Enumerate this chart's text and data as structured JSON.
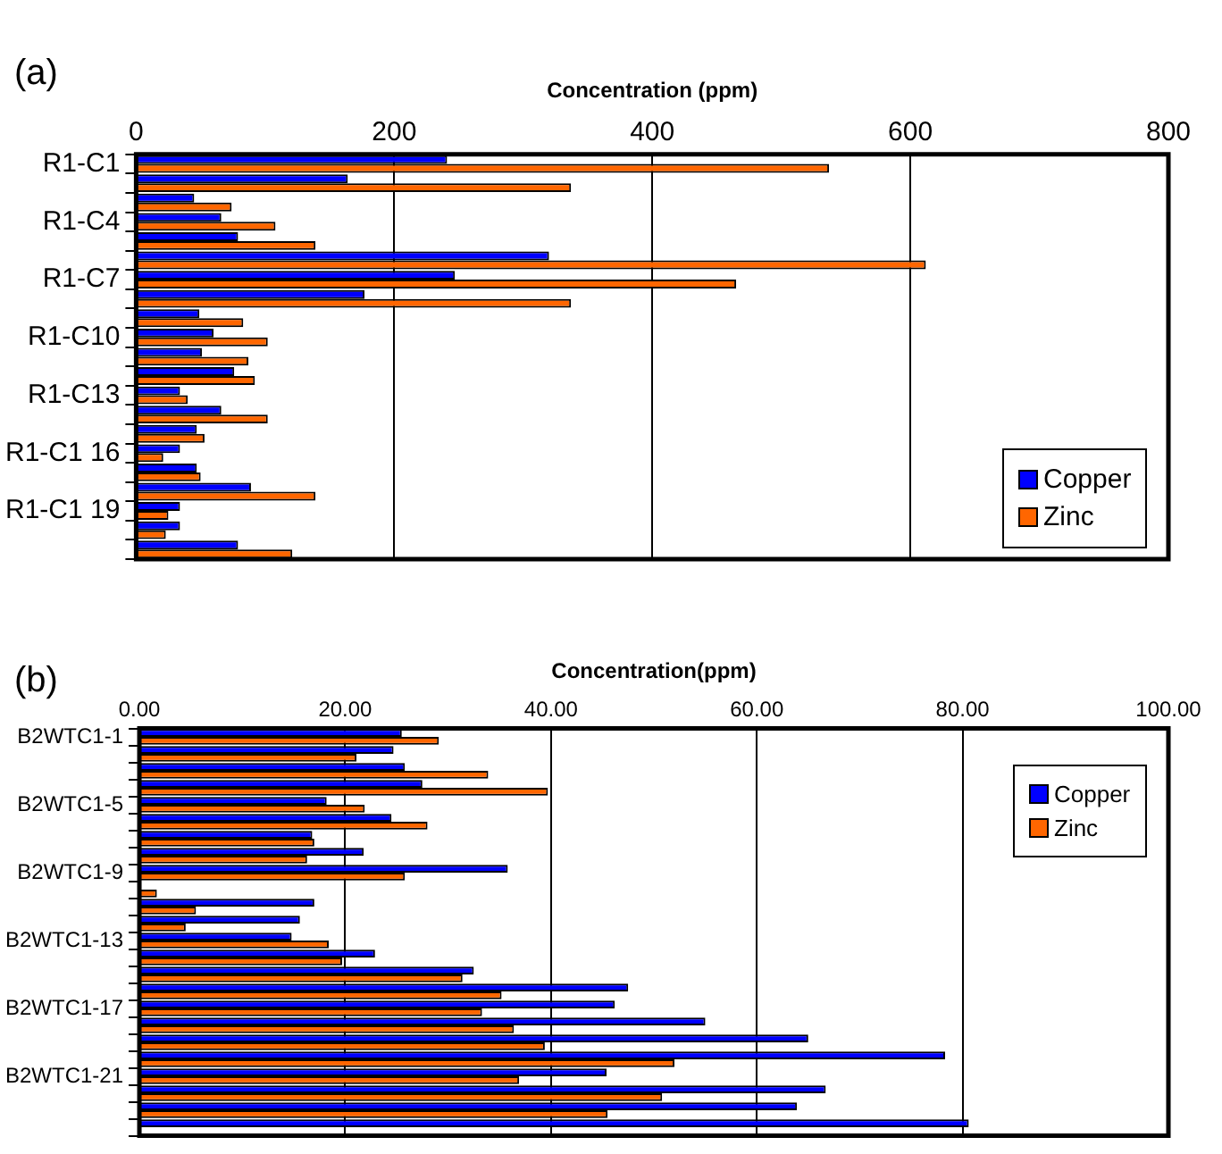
{
  "chart_data": [
    {
      "type": "bar",
      "orientation": "horizontal",
      "annotations": [
        "(a)"
      ],
      "xlabel": "Concentration (ppm)",
      "categories": [
        "R1-C1",
        null,
        null,
        "R1-C4",
        null,
        null,
        "R1-C7",
        null,
        null,
        "R1-C10",
        null,
        null,
        "R1-C13",
        null,
        null,
        "R1-C1 16",
        null,
        null,
        "R1-C1 19",
        null,
        null
      ],
      "series": [
        {
          "name": "Copper",
          "color": "#0000ff",
          "values": [
            241,
            164,
            45,
            66,
            79,
            320,
            247,
            177,
            49,
            60,
            51,
            76,
            34,
            66,
            47,
            34,
            47,
            89,
            34,
            34,
            79
          ]
        },
        {
          "name": "Zinc",
          "color": "#ff6600",
          "values": [
            537,
            337,
            74,
            108,
            139,
            612,
            465,
            337,
            83,
            102,
            87,
            92,
            40,
            102,
            53,
            21,
            50,
            139,
            25,
            23,
            121
          ]
        }
      ],
      "xlim": [
        0,
        800
      ],
      "xticks": [
        0,
        200,
        400,
        600,
        800
      ],
      "grid": "x",
      "legend": "bottom right"
    },
    {
      "type": "bar",
      "orientation": "horizontal",
      "annotations": [
        "(b)"
      ],
      "xlabel": "Concentration(ppm)",
      "categories": [
        "B2WTC1-1",
        null,
        null,
        null,
        "B2WTC1-5",
        null,
        null,
        null,
        "B2WTC1-9",
        null,
        null,
        null,
        "B2WTC1-13",
        null,
        null,
        null,
        "B2WTC1-17",
        null,
        null,
        null,
        "B2WTC1-21",
        null,
        null,
        null
      ],
      "series": [
        {
          "name": "Copper",
          "color": "#0000ff",
          "values": [
            25.5,
            24.7,
            25.8,
            27.5,
            18.2,
            24.5,
            16.8,
            21.8,
            35.8,
            null,
            17.0,
            15.6,
            14.8,
            22.9,
            32.5,
            47.5,
            46.2,
            55.0,
            65.0,
            78.3,
            45.4,
            66.7,
            63.9,
            80.6
          ]
        },
        {
          "name": "Zinc",
          "color": "#ff6600",
          "values": [
            29.1,
            21.1,
            33.9,
            39.7,
            21.9,
            28.0,
            17.0,
            16.3,
            25.8,
            1.7,
            5.5,
            4.5,
            18.4,
            19.7,
            31.4,
            35.2,
            33.3,
            36.4,
            39.4,
            52.0,
            36.9,
            50.8,
            45.5,
            null
          ]
        }
      ],
      "xlim": [
        0,
        100
      ],
      "xticks": [
        {
          "value": 0,
          "label": "0.00"
        },
        {
          "value": 20,
          "label": "20.00"
        },
        {
          "value": 40,
          "label": "40.00"
        },
        {
          "value": 60,
          "label": "60.00"
        },
        {
          "value": 80,
          "label": "80.00"
        },
        {
          "value": 100,
          "label": "100.00"
        }
      ],
      "grid": "x",
      "legend": "top right"
    }
  ]
}
